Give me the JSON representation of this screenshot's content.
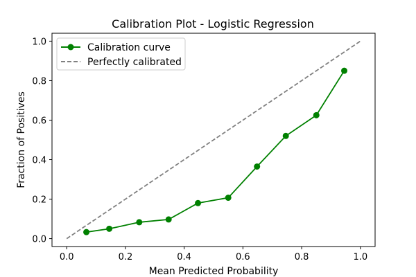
{
  "chart_data": {
    "type": "line",
    "title": "Calibration Plot - Logistic Regression",
    "xlabel": "Mean Predicted Probability",
    "ylabel": "Fraction of Positives",
    "xlim": [
      -0.05,
      1.05
    ],
    "ylim": [
      -0.04,
      1.04
    ],
    "xticks": [
      0.0,
      0.2,
      0.4,
      0.6,
      0.8,
      1.0
    ],
    "yticks": [
      0.0,
      0.2,
      0.4,
      0.6,
      0.8,
      1.0
    ],
    "xtick_labels": [
      "0.0",
      "0.2",
      "0.4",
      "0.6",
      "0.8",
      "1.0"
    ],
    "ytick_labels": [
      "0.0",
      "0.2",
      "0.4",
      "0.6",
      "0.8",
      "1.0"
    ],
    "grid": false,
    "legend_position": "top-left",
    "series": [
      {
        "name": "Calibration curve",
        "style": "solid-with-circle-markers",
        "color": "#008000",
        "x": [
          0.067,
          0.145,
          0.247,
          0.347,
          0.447,
          0.55,
          0.648,
          0.746,
          0.85,
          0.945
        ],
        "y": [
          0.033,
          0.05,
          0.083,
          0.097,
          0.18,
          0.207,
          0.365,
          0.52,
          0.625,
          0.85
        ]
      },
      {
        "name": "Perfectly calibrated",
        "style": "dashed",
        "color": "#808080",
        "x": [
          0.0,
          1.0
        ],
        "y": [
          0.0,
          1.0
        ]
      }
    ]
  }
}
